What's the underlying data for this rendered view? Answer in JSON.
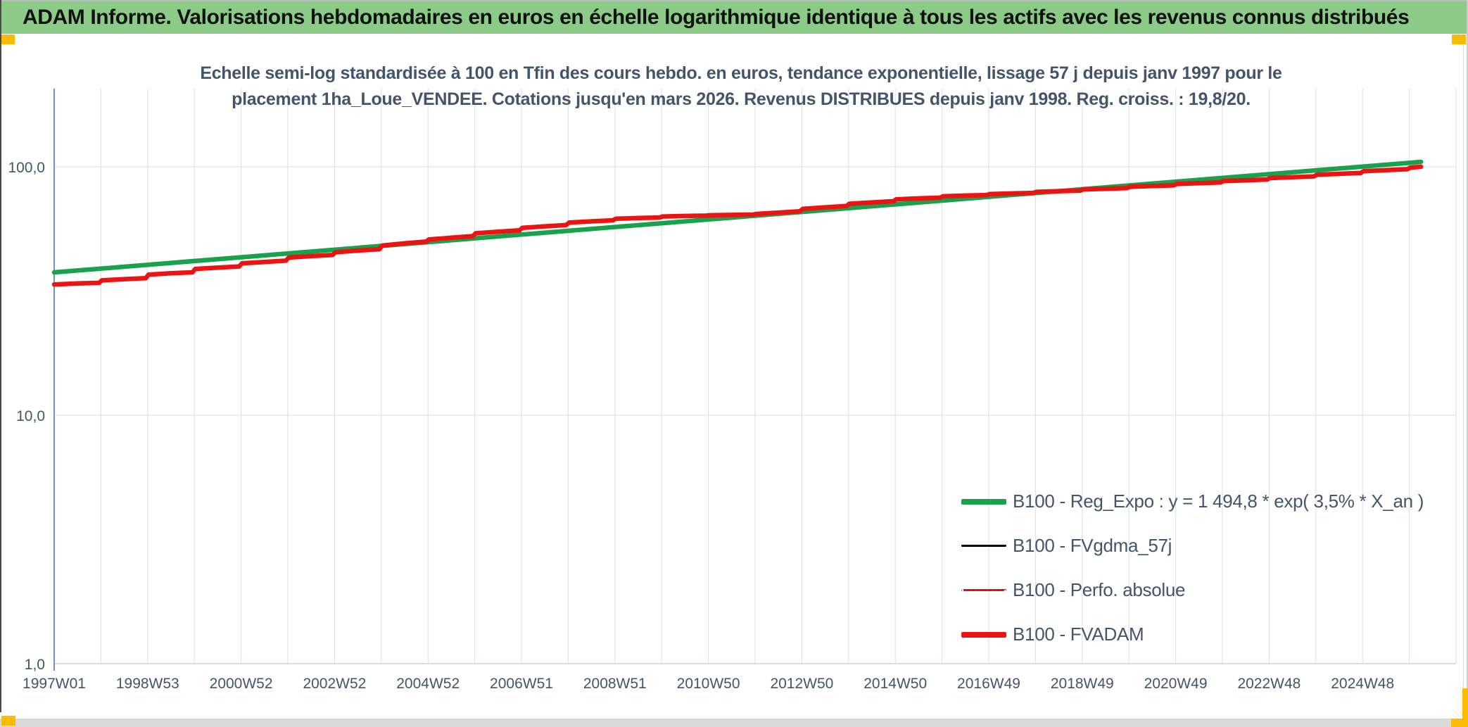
{
  "window": {
    "header_title": "ADAM Informe. Valorisations hebdomadaires en euros en échelle logarithmique identique à tous les actifs avec les revenus connus distribués"
  },
  "colors": {
    "header_green": "#8bca87",
    "accent_gold": "#fabb05",
    "title_text": "#44546a",
    "axis_text": "#44546a",
    "gridline": "#e0e3e8",
    "y_axis_line": "#4a74c0"
  },
  "chart_data": {
    "type": "line",
    "title_line1": "Echelle semi-log standardisée à 100 en Tfin des cours hebdo. en euros, tendance exponentielle, lissage 57 j depuis janv 1997 pour le",
    "title_line2": "placement 1ha_Loue_VENDEE. Cotations jusqu'en mars 2026. Revenus DISTRIBUES depuis janv 1998. Reg. croiss. : 19,8/20.",
    "y_axis": {
      "scale": "log",
      "ticks": [
        "100,0",
        "10,0",
        "1,0"
      ],
      "tick_values": [
        100,
        10,
        1
      ],
      "range": [
        1,
        200
      ]
    },
    "x_axis": {
      "tick_labels": [
        "1997W01",
        "1998W53",
        "2000W52",
        "2002W52",
        "2004W52",
        "2006W51",
        "2008W51",
        "2010W50",
        "2012W50",
        "2014W50",
        "2016W49",
        "2018W49",
        "2020W49",
        "2022W48",
        "2024W48"
      ],
      "start_year": 1997,
      "label_every_years": 2,
      "gridline_every_years": 1,
      "end_year": 2027
    },
    "legend": {
      "position": "inside-right-lower"
    },
    "series": [
      {
        "name": "B100 - Reg_Expo : y = 1 494,8 * exp( 3,5% *  X_an )",
        "color": "#19a14d",
        "width": 6.5,
        "dash": null,
        "points": [
          [
            1997.0,
            37.6
          ],
          [
            2026.25,
            104.7
          ]
        ]
      },
      {
        "name": "B100 - FVgdma_57j",
        "color": "#000000",
        "width": 2.4,
        "dash": null,
        "points": [],
        "follows": 3
      },
      {
        "name": "B100 - Perfo. absolue",
        "color": "#d01414",
        "width": 2,
        "dash": "3 5",
        "points": [],
        "follows": 3
      },
      {
        "name": "B100 - FVADAM",
        "color": "#ec1313",
        "width": 6.5,
        "dash": null,
        "points": [
          [
            1997.0,
            33.6
          ],
          [
            1997.5,
            33.9
          ],
          [
            1997.96,
            34.1
          ],
          [
            1998.02,
            34.9
          ],
          [
            1998.5,
            35.3
          ],
          [
            1998.96,
            35.6
          ],
          [
            1999.02,
            36.8
          ],
          [
            1999.5,
            37.3
          ],
          [
            1999.96,
            37.6
          ],
          [
            2000.02,
            38.8
          ],
          [
            2000.5,
            39.3
          ],
          [
            2000.96,
            39.7
          ],
          [
            2001.02,
            40.9
          ],
          [
            2001.5,
            41.4
          ],
          [
            2001.96,
            41.9
          ],
          [
            2002.02,
            43.1
          ],
          [
            2002.5,
            43.7
          ],
          [
            2002.96,
            44.2
          ],
          [
            2003.02,
            45.3
          ],
          [
            2003.5,
            46.0
          ],
          [
            2003.96,
            46.6
          ],
          [
            2004.02,
            48.2
          ],
          [
            2004.5,
            49.2
          ],
          [
            2004.96,
            50.0
          ],
          [
            2005.02,
            51.0
          ],
          [
            2005.5,
            51.8
          ],
          [
            2005.96,
            52.6
          ],
          [
            2006.02,
            54.0
          ],
          [
            2006.5,
            54.8
          ],
          [
            2006.96,
            55.5
          ],
          [
            2007.02,
            56.8
          ],
          [
            2007.5,
            57.6
          ],
          [
            2007.96,
            58.3
          ],
          [
            2008.02,
            59.6
          ],
          [
            2008.5,
            60.3
          ],
          [
            2008.96,
            60.9
          ],
          [
            2009.02,
            61.8
          ],
          [
            2009.5,
            62.2
          ],
          [
            2009.96,
            62.5
          ],
          [
            2010.02,
            63.1
          ],
          [
            2010.5,
            63.4
          ],
          [
            2010.96,
            63.6
          ],
          [
            2011.02,
            63.8
          ],
          [
            2011.5,
            64.0
          ],
          [
            2011.96,
            64.2
          ],
          [
            2012.02,
            64.6
          ],
          [
            2012.5,
            65.4
          ],
          [
            2012.96,
            66.2
          ],
          [
            2013.02,
            67.7
          ],
          [
            2013.5,
            68.7
          ],
          [
            2013.96,
            69.6
          ],
          [
            2014.02,
            71.0
          ],
          [
            2014.5,
            71.9
          ],
          [
            2014.96,
            72.7
          ],
          [
            2015.02,
            74.0
          ],
          [
            2015.5,
            74.6
          ],
          [
            2015.96,
            75.1
          ],
          [
            2016.02,
            76.1
          ],
          [
            2016.5,
            76.6
          ],
          [
            2016.96,
            77.0
          ],
          [
            2017.02,
            77.7
          ],
          [
            2017.5,
            78.1
          ],
          [
            2017.96,
            78.5
          ],
          [
            2018.02,
            79.3
          ],
          [
            2018.5,
            79.8
          ],
          [
            2018.96,
            80.2
          ],
          [
            2019.02,
            81.1
          ],
          [
            2019.5,
            81.6
          ],
          [
            2019.96,
            82.1
          ],
          [
            2020.02,
            83.1
          ],
          [
            2020.5,
            83.7
          ],
          [
            2020.96,
            84.2
          ],
          [
            2021.02,
            85.3
          ],
          [
            2021.5,
            85.9
          ],
          [
            2021.96,
            86.5
          ],
          [
            2022.02,
            87.6
          ],
          [
            2022.5,
            88.2
          ],
          [
            2022.96,
            88.9
          ],
          [
            2023.02,
            90.1
          ],
          [
            2023.5,
            90.8
          ],
          [
            2023.96,
            91.5
          ],
          [
            2024.02,
            92.9
          ],
          [
            2024.5,
            93.7
          ],
          [
            2024.96,
            94.5
          ],
          [
            2025.02,
            96.0
          ],
          [
            2025.5,
            96.9
          ],
          [
            2025.96,
            97.8
          ],
          [
            2026.02,
            99.3
          ],
          [
            2026.25,
            100.0
          ]
        ]
      }
    ]
  }
}
